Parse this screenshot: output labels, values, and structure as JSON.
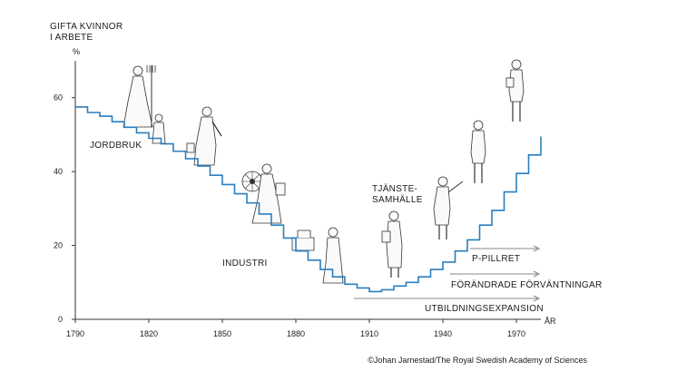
{
  "chart_data": {
    "type": "line",
    "ylabel_line1": "GIFTA KVINNOR",
    "ylabel_line2": "I ARBETE",
    "yunit": "%",
    "xlabel": "ÅR",
    "ylim": [
      0,
      70
    ],
    "xlim": [
      1790,
      1980
    ],
    "y_ticks": [
      0,
      20,
      40,
      60
    ],
    "x_ticks": [
      1790,
      1820,
      1850,
      1880,
      1910,
      1940,
      1970
    ],
    "step": "post",
    "line_color": "#2a7fc0",
    "series": [
      {
        "x": [
          1790,
          1795,
          1800,
          1805,
          1810,
          1815,
          1820,
          1825,
          1830,
          1835,
          1840,
          1845,
          1850,
          1855,
          1860,
          1865,
          1870,
          1875,
          1880,
          1885,
          1890,
          1895,
          1900,
          1905,
          1910,
          1915,
          1920,
          1925,
          1930,
          1935,
          1940,
          1945,
          1950,
          1955,
          1960,
          1965,
          1970,
          1975,
          1980
        ],
        "y": [
          57.5,
          56.0,
          55.0,
          53.5,
          52.0,
          50.5,
          49.0,
          47.5,
          45.5,
          43.5,
          41.5,
          39.0,
          36.5,
          34.0,
          31.5,
          28.5,
          25.5,
          22.0,
          18.5,
          16.0,
          13.5,
          11.5,
          9.5,
          8.5,
          7.5,
          8.0,
          9.0,
          10.0,
          11.5,
          13.5,
          15.5,
          18.5,
          21.5,
          25.5,
          29.5,
          34.5,
          39.5,
          44.5,
          49.5
        ]
      }
    ],
    "annotations": {
      "jordbruk": "JORDBRUK",
      "industri": "INDUSTRI",
      "tjanste_line1": "TJÄNSTE-",
      "tjanste_line2": "SAMHÄLLE",
      "arrow1": "P-PILLRET",
      "arrow2": "FÖRÄNDRADE FÖRVÄNTNINGAR",
      "arrow3": "UTBILDNINGSEXPANSION"
    }
  },
  "credit": "©Johan Jarnestad/The Royal Swedish Academy of Sciences"
}
